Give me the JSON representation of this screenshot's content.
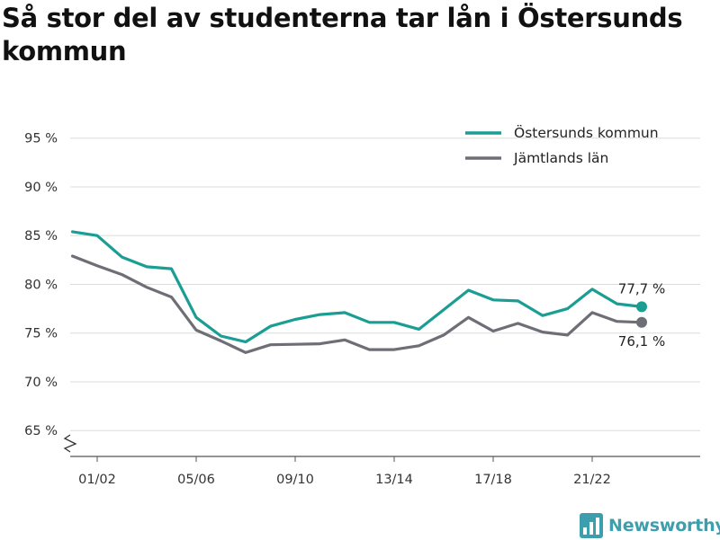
{
  "title": "Så stor del av studenterna tar lån i Östersunds kommun",
  "brand": {
    "name": "Newsworthy"
  },
  "chart_data": {
    "type": "line",
    "title": "Så stor del av studenterna tar lån i Östersunds kommun",
    "xlabel": "",
    "ylabel": "",
    "x": [
      "00/01",
      "01/02",
      "02/03",
      "03/04",
      "04/05",
      "05/06",
      "06/07",
      "07/08",
      "08/09",
      "09/10",
      "10/11",
      "11/12",
      "12/13",
      "13/14",
      "14/15",
      "15/16",
      "16/17",
      "17/18",
      "18/19",
      "19/20",
      "20/21",
      "21/22",
      "22/23",
      "23/24"
    ],
    "x_tick_labels": [
      "01/02",
      "05/06",
      "09/10",
      "13/14",
      "17/18",
      "21/22"
    ],
    "y_tick_labels": [
      "65 %",
      "70 %",
      "75 %",
      "80 %",
      "85 %",
      "90 %",
      "95 %"
    ],
    "y_ticks": [
      65,
      70,
      75,
      80,
      85,
      90,
      95
    ],
    "ylim": [
      62,
      96.5
    ],
    "grid": true,
    "legend": "top-right",
    "series": [
      {
        "name": "Östersunds kommun",
        "color": "#1a9e94",
        "end_label": "77,7 %",
        "values": [
          85.4,
          85.0,
          82.8,
          81.8,
          81.6,
          76.6,
          74.7,
          74.1,
          75.7,
          76.4,
          76.9,
          77.1,
          76.1,
          76.1,
          75.4,
          77.4,
          79.4,
          78.4,
          78.3,
          76.8,
          77.5,
          79.5,
          78.0,
          77.7
        ]
      },
      {
        "name": "Jämtlands län",
        "color": "#6e6e76",
        "end_label": "76,1 %",
        "values": [
          82.9,
          81.9,
          81.0,
          79.7,
          78.7,
          75.3,
          74.2,
          73.0,
          73.8,
          73.85,
          73.9,
          74.3,
          73.3,
          73.3,
          73.7,
          74.8,
          76.6,
          75.2,
          76.0,
          75.1,
          74.8,
          77.1,
          76.2,
          76.1
        ]
      }
    ]
  }
}
